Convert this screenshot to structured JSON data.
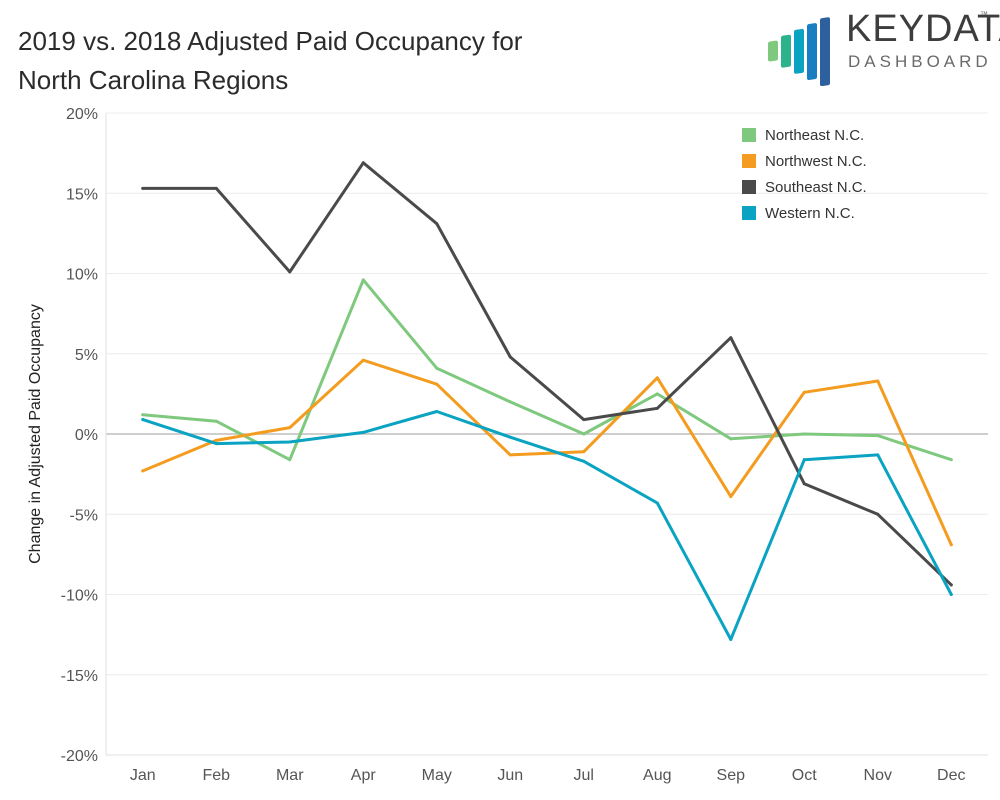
{
  "chart_data": {
    "type": "line",
    "title_line1": "2019 vs. 2018 Adjusted Paid Occupancy for",
    "title_line2": "North Carolina Regions",
    "ylabel": "Change in Adjusted Paid Occupancy",
    "xlabel": "",
    "categories": [
      "Jan",
      "Feb",
      "Mar",
      "Apr",
      "May",
      "Jun",
      "Jul",
      "Aug",
      "Sep",
      "Oct",
      "Nov",
      "Dec"
    ],
    "ylim": [
      -20,
      20
    ],
    "yticks": [
      20,
      15,
      10,
      5,
      0,
      -5,
      -10,
      -15,
      -20
    ],
    "ytick_labels": [
      "20%",
      "15%",
      "10%",
      "5%",
      "0%",
      "-5%",
      "-10%",
      "-15%",
      "-20%"
    ],
    "legend_position": "top-right",
    "series": [
      {
        "name": "Northeast N.C.",
        "color": "#7fc97f",
        "values": [
          1.2,
          0.8,
          -1.6,
          9.6,
          4.1,
          2.0,
          0.0,
          2.5,
          -0.3,
          0.0,
          -0.1,
          -1.6
        ]
      },
      {
        "name": "Northwest N.C.",
        "color": "#f39c1f",
        "values": [
          -2.3,
          -0.4,
          0.4,
          4.6,
          3.1,
          -1.3,
          -1.1,
          3.5,
          -3.9,
          2.6,
          3.3,
          -6.9
        ]
      },
      {
        "name": "Southeast N.C.",
        "color": "#4a4a4a",
        "values": [
          15.3,
          15.3,
          10.1,
          16.9,
          13.1,
          4.8,
          0.9,
          1.6,
          6.0,
          -3.1,
          -5.0,
          -9.4
        ]
      },
      {
        "name": "Western N.C.",
        "color": "#0aa3c2",
        "values": [
          0.9,
          -0.6,
          -0.5,
          0.1,
          1.4,
          -0.2,
          -1.7,
          -4.3,
          -12.8,
          -1.6,
          -1.3,
          -10.0
        ]
      }
    ]
  },
  "logo": {
    "word": "KEYDATA",
    "tm": "™",
    "subtitle": "DASHBOARD",
    "bar_colors": [
      "#7fc97f",
      "#2bb38c",
      "#0aa3c2",
      "#1a7fc0",
      "#2e5f9e"
    ]
  }
}
